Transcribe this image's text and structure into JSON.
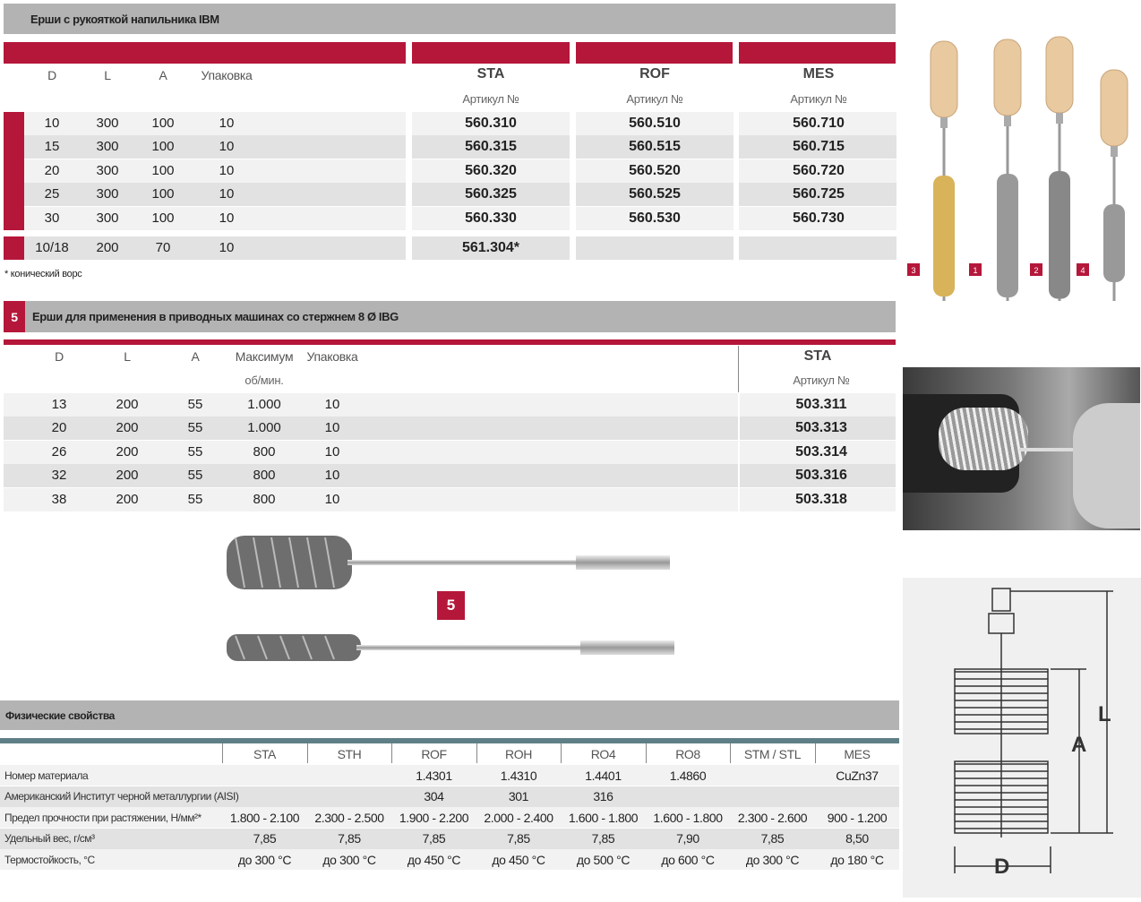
{
  "section1": {
    "title": "Ерши с рукояткой напильника IBM",
    "headers": [
      "D",
      "L",
      "A",
      "Упаковка"
    ],
    "materials": [
      "STA",
      "ROF",
      "MES"
    ],
    "article_label": "Артикул №",
    "rows": [
      [
        "10",
        "300",
        "100",
        "10",
        "560.310",
        "560.510",
        "560.710"
      ],
      [
        "15",
        "300",
        "100",
        "10",
        "560.315",
        "560.515",
        "560.715"
      ],
      [
        "20",
        "300",
        "100",
        "10",
        "560.320",
        "560.520",
        "560.720"
      ],
      [
        "25",
        "300",
        "100",
        "10",
        "560.325",
        "560.525",
        "560.725"
      ],
      [
        "30",
        "300",
        "100",
        "10",
        "560.330",
        "560.530",
        "560.730"
      ],
      [
        "10/18",
        "200",
        "70",
        "10",
        "561.304*",
        "",
        ""
      ]
    ],
    "footnote": "* конический ворс"
  },
  "section5": {
    "number": "5",
    "title": "Ерши для применения в приводных машинах со стержнем 8 Ø IBG",
    "headers": [
      "D",
      "L",
      "A",
      "Максимум",
      "Упаковка"
    ],
    "header_sub": "об/мин.",
    "material": "STA",
    "article_label": "Артикул №",
    "rows": [
      [
        "13",
        "200",
        "55",
        "1.000",
        "10",
        "503.311"
      ],
      [
        "20",
        "200",
        "55",
        "1.000",
        "10",
        "503.313"
      ],
      [
        "26",
        "200",
        "55",
        "800",
        "10",
        "503.314"
      ],
      [
        "32",
        "200",
        "55",
        "800",
        "10",
        "503.316"
      ],
      [
        "38",
        "200",
        "55",
        "800",
        "10",
        "503.318"
      ]
    ],
    "image_badge": "5"
  },
  "physical": {
    "title": "Физические свойства",
    "columns": [
      "STA",
      "STH",
      "ROF",
      "ROH",
      "RO4",
      "RO8",
      "STM / STL",
      "MES"
    ],
    "rows": [
      {
        "label": "Номер материала",
        "values": [
          "",
          "",
          "1.4301",
          "1.4310",
          "1.4401",
          "1.4860",
          "",
          "CuZn37"
        ]
      },
      {
        "label": "Американский Институт черной металлургии (AISI)",
        "values": [
          "",
          "",
          "304",
          "301",
          "316",
          "",
          "",
          ""
        ]
      },
      {
        "label": "Предел прочности при растяжении, Н/мм²*",
        "values": [
          "1.800 - 2.100",
          "2.300 - 2.500",
          "1.900 - 2.200",
          "2.000 - 2.400",
          "1.600 - 1.800",
          "1.600 - 1.800",
          "2.300 - 2.600",
          "900 - 1.200"
        ]
      },
      {
        "label": "Удельный вес, г/см³",
        "values": [
          "7,85",
          "7,85",
          "7,85",
          "7,85",
          "7,85",
          "7,90",
          "7,85",
          "8,50"
        ]
      },
      {
        "label": "Термостойкость, °C",
        "values": [
          "до 300 °C",
          "до 300 °C",
          "до 450 °C",
          "до 450 °C",
          "до 500 °C",
          "до 600 °C",
          "до 300 °C",
          "до 180 °C"
        ]
      }
    ]
  },
  "side": {
    "brush_labels": [
      "3",
      "1",
      "2",
      "4"
    ],
    "diagram_labels": [
      "L",
      "A",
      "D"
    ]
  },
  "colors": {
    "accent": "#b5173a",
    "header_gray": "#b3b3b3",
    "teal": "#5f7f87"
  }
}
